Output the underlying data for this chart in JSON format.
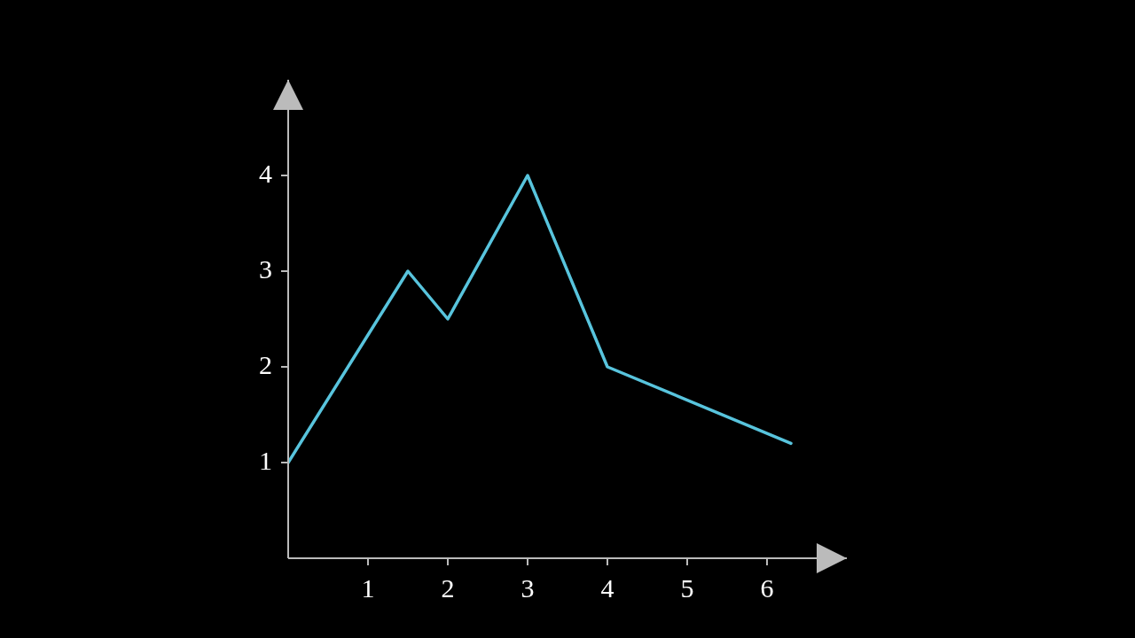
{
  "chart_data": {
    "type": "line",
    "x": [
      0,
      1.5,
      2,
      3,
      4,
      6.3
    ],
    "series": [
      {
        "color": "#58c4dd",
        "values": [
          1,
          3,
          2.5,
          4,
          2,
          1.2
        ]
      }
    ],
    "xlim": [
      0,
      7
    ],
    "ylim": [
      0,
      5
    ],
    "xticks": [
      1,
      2,
      3,
      4,
      5,
      6
    ],
    "yticks": [
      1,
      2,
      3,
      4
    ],
    "grid": false,
    "legend": false,
    "marker": "none",
    "line_style": "solid"
  }
}
